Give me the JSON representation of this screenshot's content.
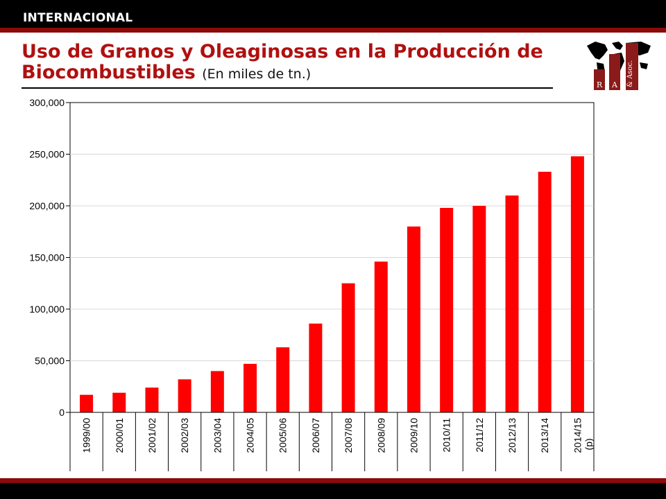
{
  "header": {
    "section": "INTERNACIONAL"
  },
  "title": {
    "main": "Uso de Granos y Oleaginosas en la Producción de Biocombustibles",
    "subtitle": "(En miles de tn.)"
  },
  "logo": {
    "letters": [
      "R",
      "A",
      "& Asoc."
    ]
  },
  "colors": {
    "bar": "#ff0000",
    "accent": "#8b0a0a",
    "title": "#b01010"
  },
  "chart_data": {
    "type": "bar",
    "categories": [
      "1999/00",
      "2000/01",
      "2001/02",
      "2002/03",
      "2003/04",
      "2004/05",
      "2005/06",
      "2006/07",
      "2007/08",
      "2008/09",
      "2009/10",
      "2010/11",
      "2011/12",
      "2012/13",
      "2013/14",
      "2014/15 (p)"
    ],
    "values": [
      17000,
      19000,
      24000,
      32000,
      40000,
      47000,
      63000,
      86000,
      125000,
      146000,
      180000,
      198000,
      200000,
      210000,
      233000,
      248000
    ],
    "ylim": [
      0,
      300000
    ],
    "yticks": [
      "0",
      "50,000",
      "100,000",
      "150,000",
      "200,000",
      "250,000",
      "300,000"
    ],
    "grid": true,
    "legend": "none"
  }
}
